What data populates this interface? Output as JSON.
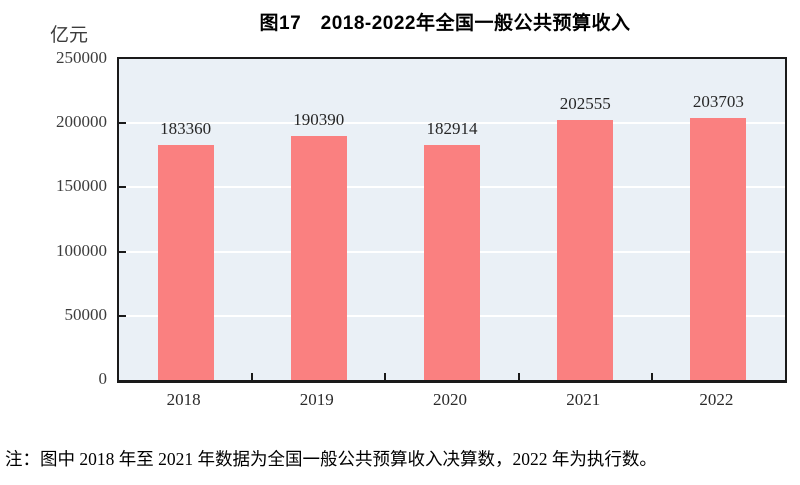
{
  "title": "图17　2018-2022年全国一般公共预算收入",
  "y_unit": "亿元",
  "note": "注：图中 2018 年至 2021 年数据为全国一般公共预算收入决算数，2022 年为执行数。",
  "colors": {
    "bar": "#FA8080",
    "plot_background": "#EAF0F6",
    "gridline": "#FFFFFF",
    "frame": "#1A1A1A",
    "tick_label": "#3C3C3C",
    "data_label": "#262626",
    "title_text": "#000000"
  },
  "chart_data": {
    "type": "bar",
    "title": "图17　2018-2022年全国一般公共预算收入",
    "ylabel": "亿元",
    "xlabel": "",
    "categories": [
      "2018",
      "2019",
      "2020",
      "2021",
      "2022"
    ],
    "values": [
      183360,
      190390,
      182914,
      202555,
      203703
    ],
    "data_labels": [
      "183360",
      "190390",
      "182914",
      "202555",
      "203703"
    ],
    "ylim": [
      0,
      250000
    ],
    "yticks": [
      0,
      50000,
      100000,
      150000,
      200000,
      250000
    ],
    "grid": "horizontal white gridlines, no vertical gridlines",
    "legend": "none",
    "bar_width_fraction": 0.42
  }
}
